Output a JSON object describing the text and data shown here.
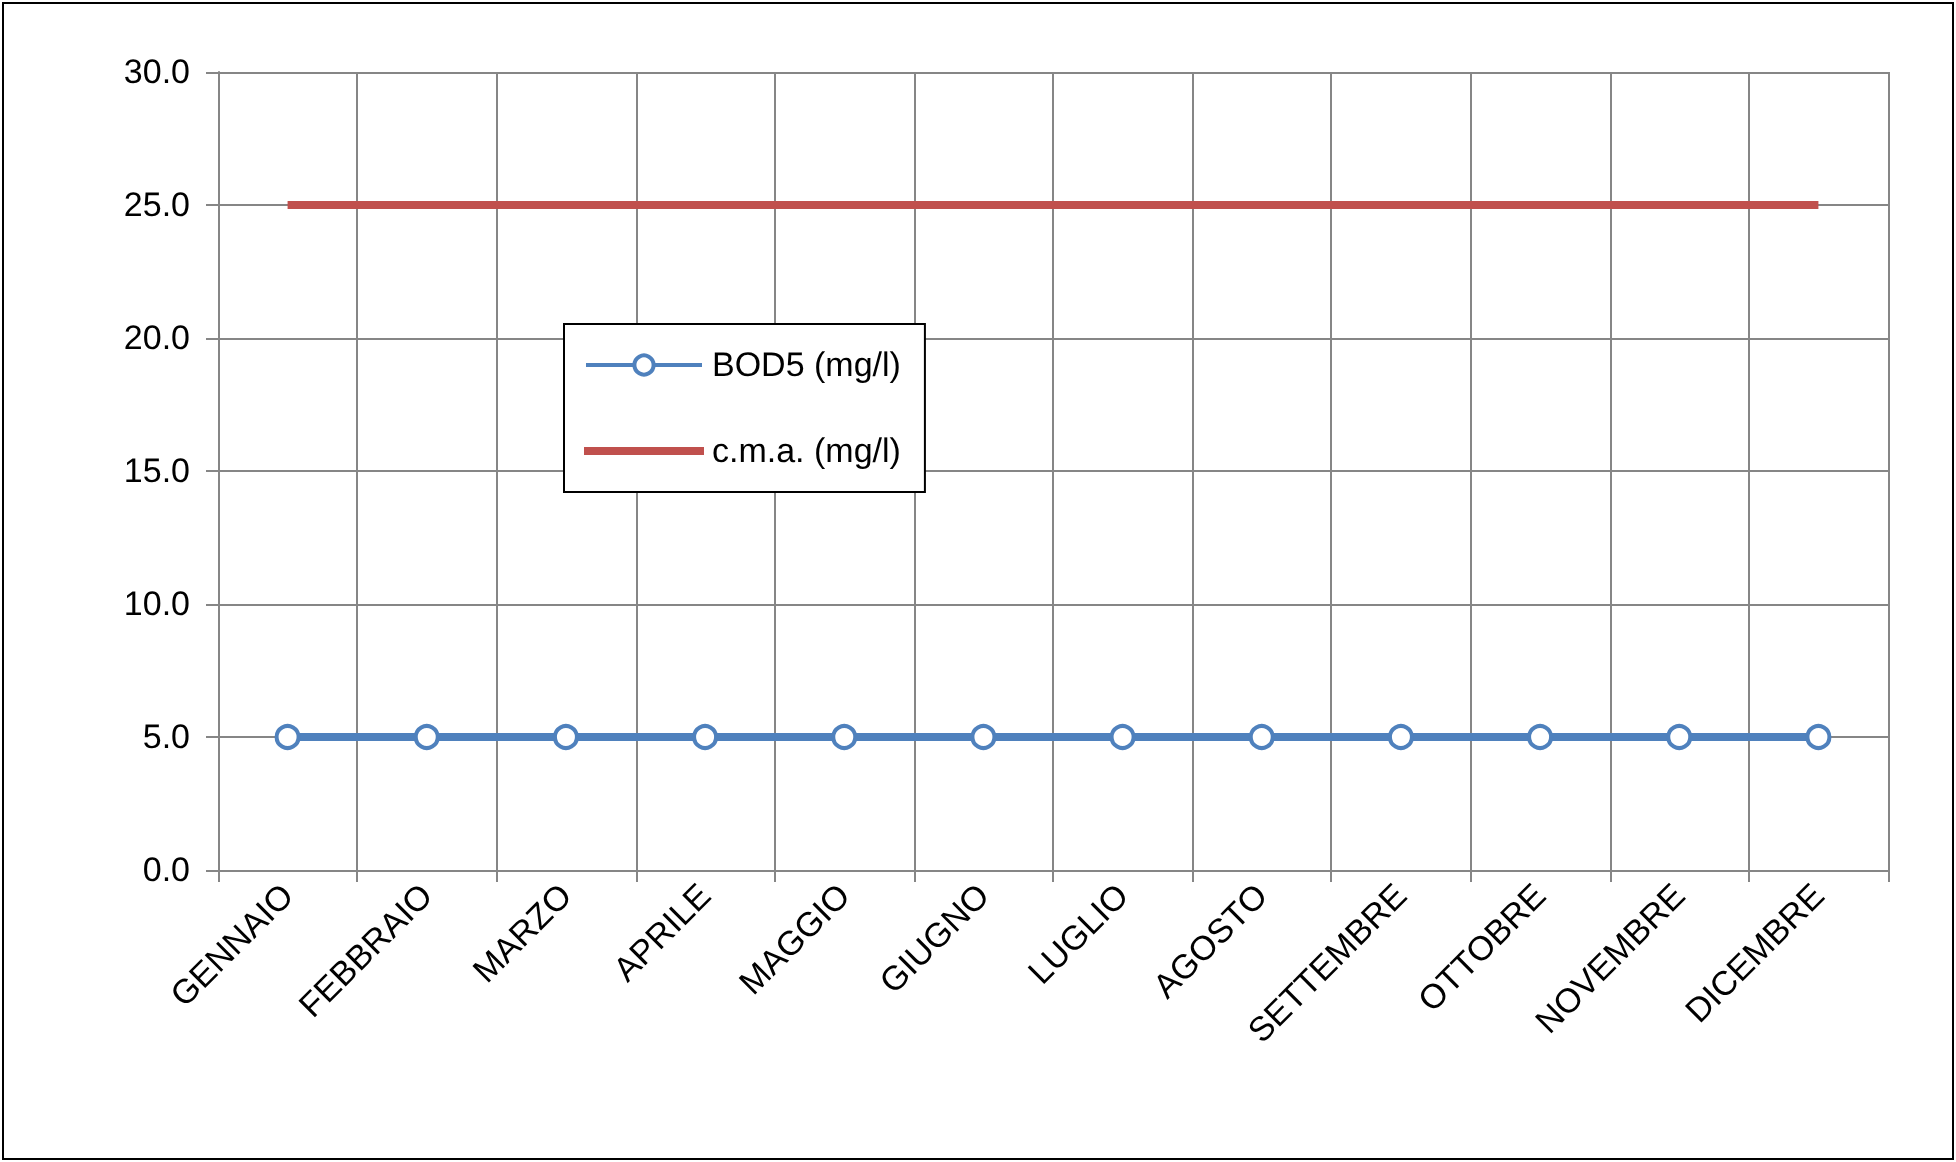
{
  "chart_data": {
    "type": "line",
    "categories": [
      "GENNAIO",
      "FEBBRAIO",
      "MARZO",
      "APRILE",
      "MAGGIO",
      "GIUGNO",
      "LUGLIO",
      "AGOSTO",
      "SETTEMBRE",
      "OTTOBRE",
      "NOVEMBRE",
      "DICEMBRE"
    ],
    "series": [
      {
        "name": "BOD5 (mg/l)",
        "color": "#4f81bd",
        "marker": "circle",
        "values": [
          5,
          5,
          5,
          5,
          5,
          5,
          5,
          5,
          5,
          5,
          5,
          5
        ]
      },
      {
        "name": "c.m.a. (mg/l)",
        "color": "#c0504d",
        "marker": "none",
        "values": [
          25,
          25,
          25,
          25,
          25,
          25,
          25,
          25,
          25,
          25,
          25,
          25
        ]
      }
    ],
    "ylim": [
      0,
      30
    ],
    "yticks": [
      {
        "value": 0,
        "label": "0.0"
      },
      {
        "value": 5,
        "label": "5.0"
      },
      {
        "value": 10,
        "label": "10.0"
      },
      {
        "value": 15,
        "label": "15.0"
      },
      {
        "value": 20,
        "label": "20.0"
      },
      {
        "value": 25,
        "label": "25.0"
      },
      {
        "value": 30,
        "label": "30.0"
      }
    ],
    "grid": true,
    "legend": "center",
    "line_style": "solid"
  }
}
